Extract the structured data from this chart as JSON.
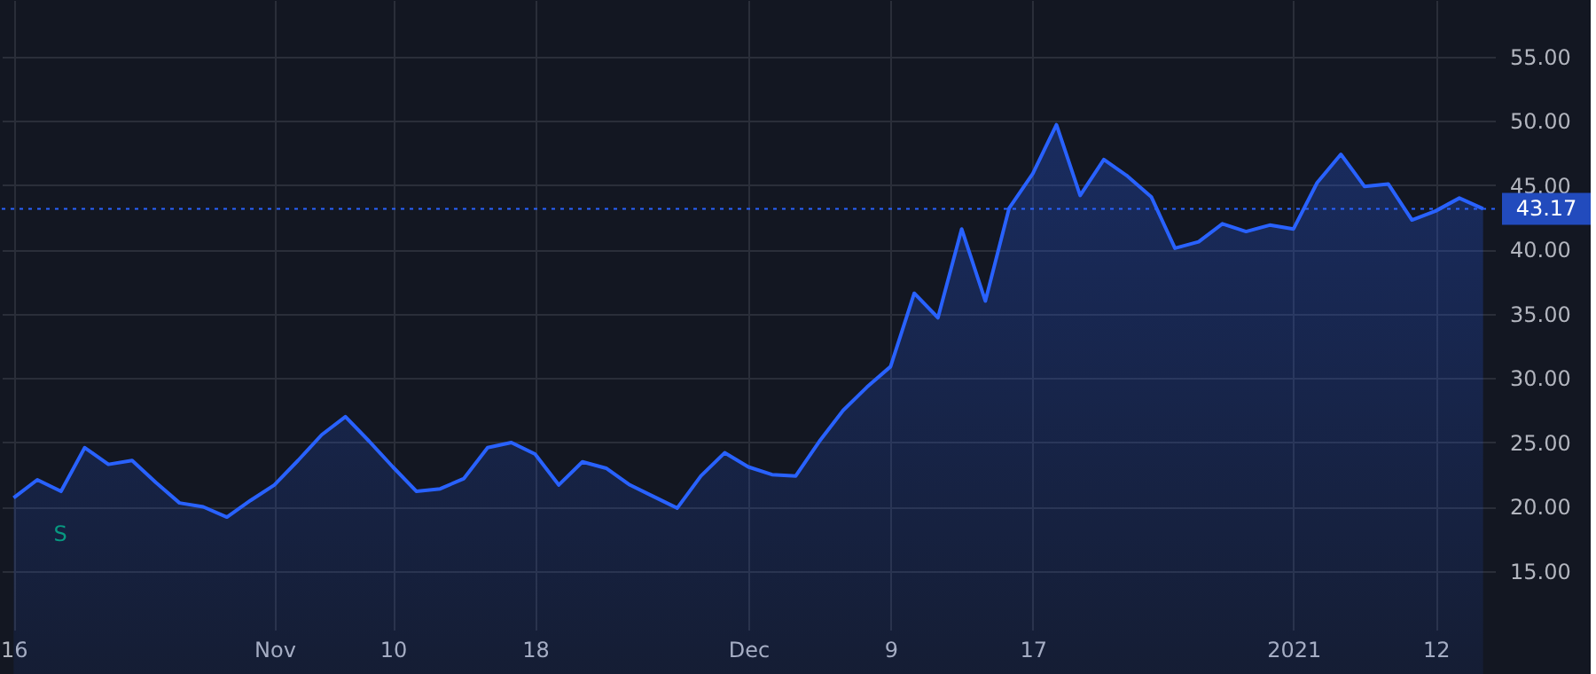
{
  "chart_data": {
    "type": "area",
    "categories": [
      "16",
      null,
      null,
      null,
      null,
      null,
      null,
      null,
      null,
      null,
      null,
      "Nov",
      null,
      null,
      null,
      null,
      "10",
      null,
      null,
      null,
      null,
      null,
      "18",
      null,
      null,
      null,
      null,
      null,
      null,
      null,
      null,
      "Dec",
      null,
      null,
      null,
      null,
      null,
      "9",
      null,
      null,
      null,
      null,
      null,
      "17",
      null,
      null,
      null,
      null,
      null,
      null,
      null,
      null,
      null,
      null,
      "2021",
      null,
      null,
      null,
      null,
      null,
      "12",
      null,
      null
    ],
    "series": [
      {
        "color": "#2962ff",
        "values": [
          20.7,
          22.1,
          21.2,
          24.6,
          23.3,
          23.6,
          21.9,
          20.3,
          20.0,
          19.2,
          20.5,
          21.7,
          23.6,
          25.6,
          27.0,
          25.1,
          23.1,
          21.2,
          21.4,
          22.2,
          24.6,
          25.0,
          24.1,
          21.7,
          23.5,
          23.0,
          21.7,
          20.8,
          19.9,
          22.4,
          24.2,
          23.1,
          22.5,
          22.4,
          25.1,
          27.5,
          29.3,
          30.9,
          36.6,
          34.7,
          41.6,
          36.0,
          43.2,
          45.9,
          49.7,
          44.2,
          47.0,
          45.7,
          44.1,
          40.1,
          40.6,
          42.0,
          41.4,
          41.9,
          41.6,
          45.2,
          47.4,
          44.9,
          45.1,
          42.3,
          43.0,
          44.0,
          43.17
        ]
      }
    ],
    "ylim": [
      10.45,
      59.4
    ],
    "yticks": [
      {
        "value": 15,
        "label": "15.00"
      },
      {
        "value": 20,
        "label": "20.00"
      },
      {
        "value": 25,
        "label": "25.00"
      },
      {
        "value": 30,
        "label": "30.00"
      },
      {
        "value": 35,
        "label": "35.00"
      },
      {
        "value": 40,
        "label": "40.00"
      },
      {
        "value": 45,
        "label": "45.00"
      },
      {
        "value": 50,
        "label": "50.00"
      },
      {
        "value": 55,
        "label": "55.00"
      }
    ],
    "ref_lines": [
      {
        "axis": "y",
        "value": 43.17,
        "label": "43.17",
        "color": "#2962ff",
        "line_style": "dotted"
      }
    ],
    "annotations": [
      "S"
    ],
    "grid": true
  }
}
